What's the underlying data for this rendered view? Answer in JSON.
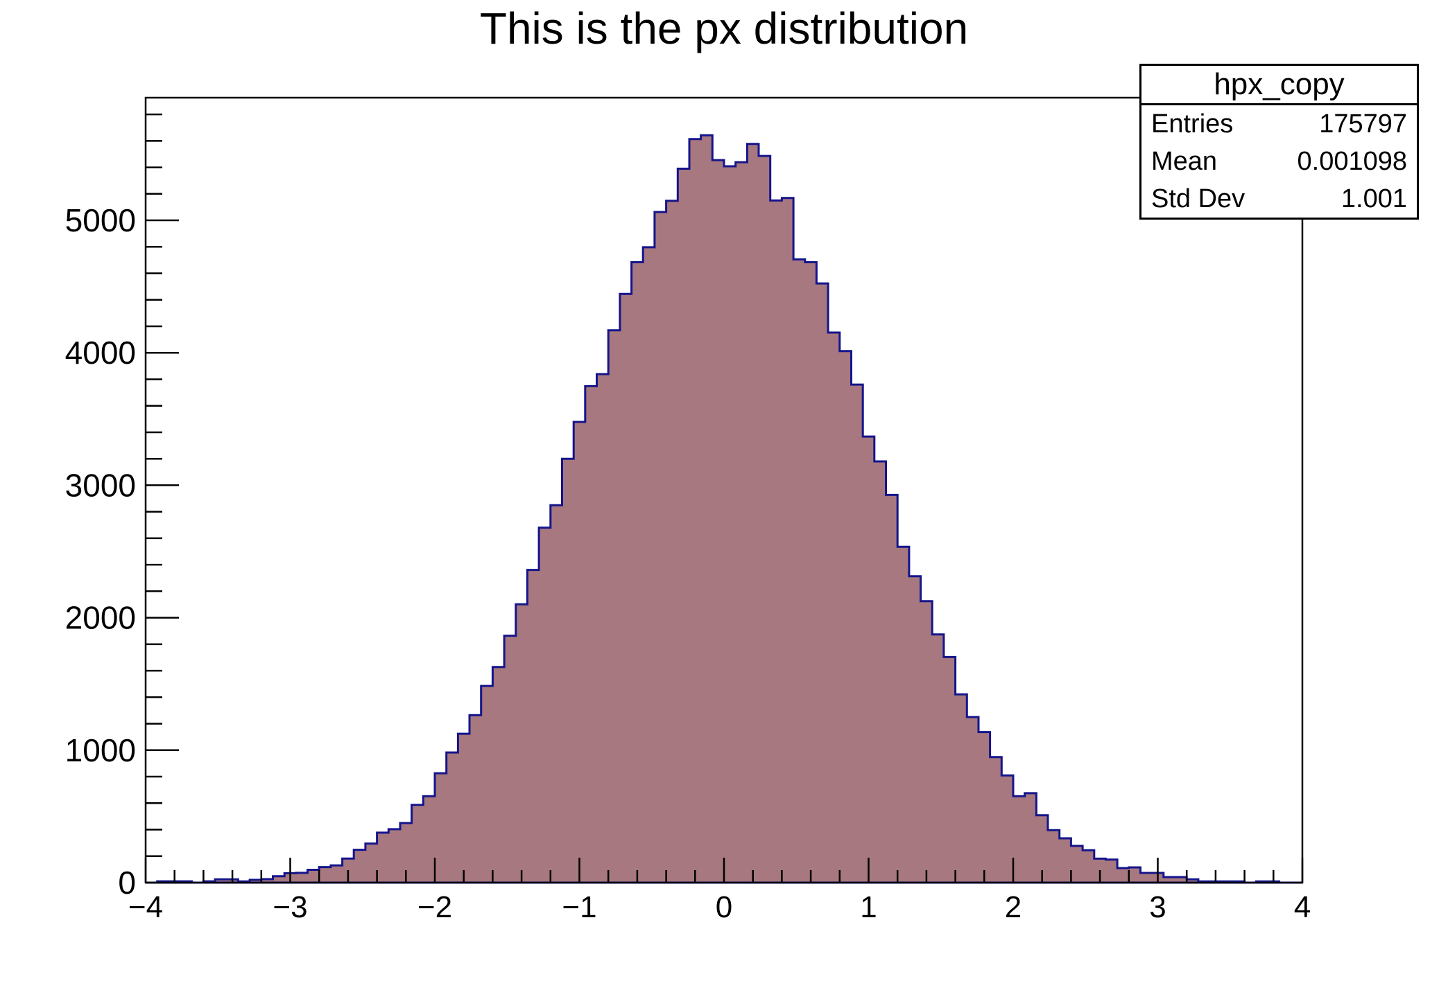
{
  "chart_data": {
    "type": "bar",
    "title": "This is the px distribution",
    "xlabel": "",
    "ylabel": "",
    "x_min": -4,
    "x_max": 4,
    "bin_width": 0.08,
    "n_bins": 100,
    "x_ticks": [
      -4,
      -3,
      -2,
      -1,
      0,
      1,
      2,
      3,
      4
    ],
    "x_minor_step": 0.2,
    "y_ticks": [
      0,
      1000,
      2000,
      3000,
      4000,
      5000
    ],
    "y_minor_step": 200,
    "y_max": 5926,
    "grid": false,
    "legend_position": "none",
    "fill_color": "#a7787f",
    "line_color": "#14148c",
    "axis_color": "#000000",
    "values": [
      0,
      10,
      10,
      10,
      0,
      10,
      25,
      25,
      9,
      21,
      26,
      48,
      71,
      74,
      97,
      117,
      130,
      182,
      248,
      295,
      377,
      403,
      450,
      587,
      652,
      826,
      983,
      1124,
      1264,
      1485,
      1628,
      1864,
      2101,
      2361,
      2680,
      2849,
      3200,
      3478,
      3748,
      3839,
      4170,
      4445,
      4684,
      4797,
      5063,
      5147,
      5390,
      5613,
      5642,
      5455,
      5408,
      5439,
      5577,
      5486,
      5150,
      5169,
      4705,
      4684,
      4524,
      4153,
      4013,
      3760,
      3368,
      3180,
      2927,
      2535,
      2313,
      2125,
      1874,
      1703,
      1421,
      1250,
      1137,
      948,
      809,
      652,
      675,
      509,
      396,
      335,
      277,
      244,
      181,
      174,
      110,
      115,
      73,
      73,
      42,
      42,
      25,
      9,
      9,
      9,
      9,
      0,
      9,
      9,
      0,
      0
    ]
  },
  "stats_box": {
    "title": "hpx_copy",
    "rows": [
      {
        "label": "Entries",
        "value": "175797"
      },
      {
        "label": "Mean",
        "value": "0.001098"
      },
      {
        "label": "Std Dev",
        "value": "1.001"
      }
    ]
  }
}
